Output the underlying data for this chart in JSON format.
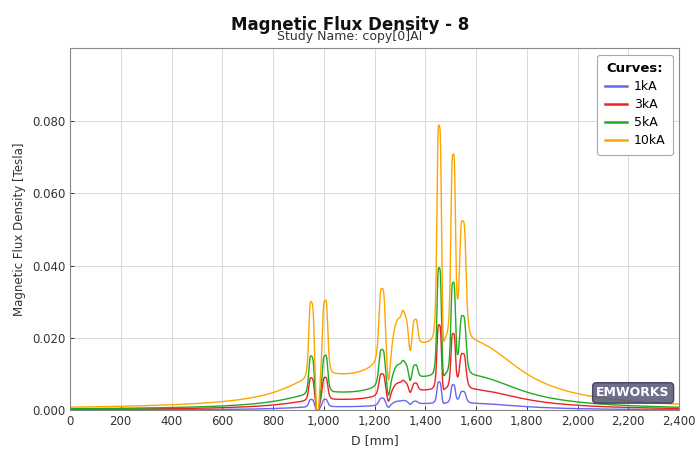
{
  "title": "Magnetic Flux Density - 8",
  "subtitle": "Study Name: copy[0]AI",
  "xlabel": "D [mm]",
  "ylabel": "Magnetic Flux Density [Tesla]",
  "xlim": [
    0,
    2400
  ],
  "ylim": [
    -0.001,
    0.1
  ],
  "ylim_display": [
    0,
    0.1
  ],
  "xticks": [
    0,
    200,
    400,
    600,
    800,
    1000,
    1200,
    1400,
    1600,
    1800,
    2000,
    2200,
    2400
  ],
  "yticks": [
    0.0,
    0.02,
    0.04,
    0.06,
    0.08
  ],
  "curves": [
    "1kA",
    "3kA",
    "5kA",
    "10kA"
  ],
  "colors": [
    "#6666EE",
    "#EE2222",
    "#22AA22",
    "#FFA500"
  ],
  "background_color": "#FFFFFF",
  "grid_color": "#D8D8D8",
  "legend_title": "Curves:",
  "watermark": "EMWORKS",
  "scales": [
    0.1,
    0.3,
    0.5,
    1.0
  ]
}
